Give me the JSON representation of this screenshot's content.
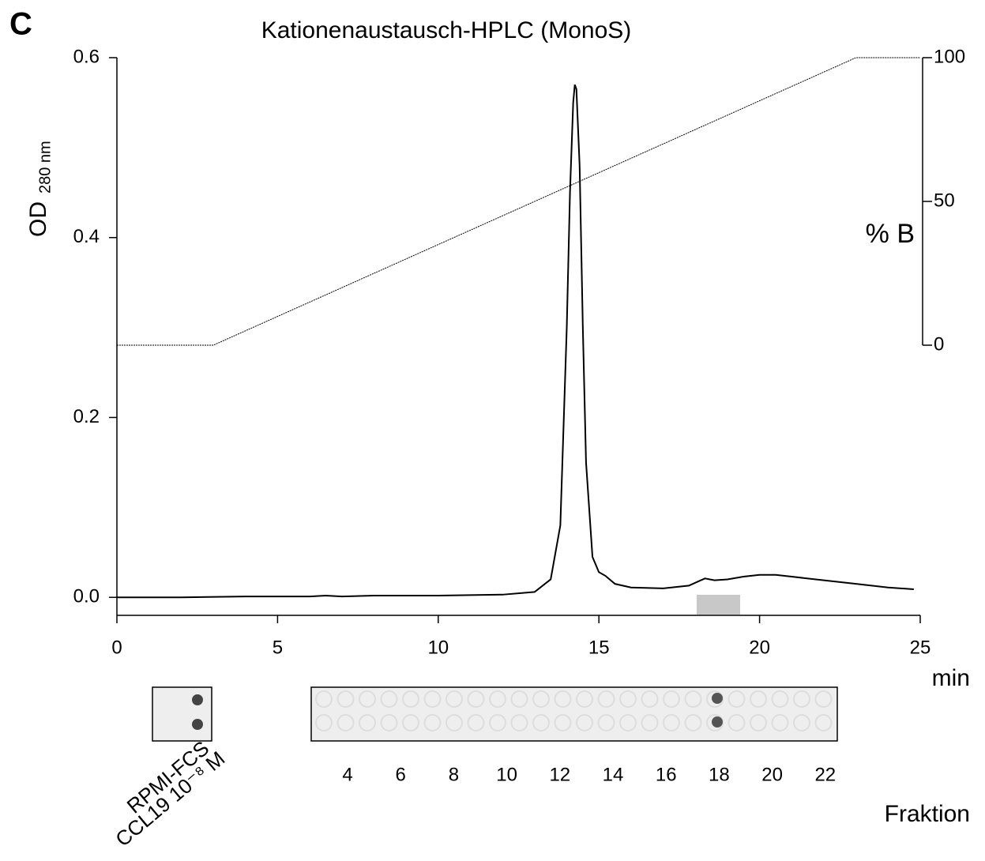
{
  "panel_label": "C",
  "chart_data": {
    "type": "line",
    "title": "Kationenaustausch-HPLC (MonoS)",
    "y_label": "OD",
    "y_label_sub": "280 nm",
    "y2_label": "% B",
    "x_label": "min",
    "xlim": [
      0,
      25
    ],
    "xticks": [
      0,
      5,
      10,
      15,
      20,
      25
    ],
    "ylim": [
      -0.02,
      0.6
    ],
    "yticks": [
      {
        "value": 0,
        "label": "0.0"
      },
      0.2,
      0.4,
      0.6
    ],
    "y2lim": [
      0,
      100
    ],
    "y2ticks": [
      0,
      50,
      100
    ],
    "series": [
      {
        "color": "#000000",
        "style": "solid",
        "x": [
          0,
          2,
          4,
          6,
          6.5,
          7,
          8,
          10,
          12,
          13,
          13.5,
          13.8,
          14.0,
          14.1,
          14.2,
          14.25,
          14.3,
          14.4,
          14.5,
          14.6,
          14.8,
          15.0,
          15.2,
          15.5,
          16,
          17,
          17.8,
          18.3,
          18.6,
          19,
          19.5,
          20,
          20.5,
          21,
          22,
          23,
          24,
          24.8
        ],
        "values": [
          0,
          0,
          0.001,
          0.001,
          0.002,
          0.001,
          0.002,
          0.002,
          0.003,
          0.006,
          0.02,
          0.08,
          0.3,
          0.45,
          0.55,
          0.57,
          0.565,
          0.48,
          0.3,
          0.15,
          0.045,
          0.028,
          0.024,
          0.015,
          0.011,
          0.01,
          0.013,
          0.021,
          0.019,
          0.02,
          0.023,
          0.025,
          0.025,
          0.023,
          0.019,
          0.015,
          0.011,
          0.009
        ]
      },
      {
        "color": "#000000",
        "style": "dotted",
        "axis": "y2",
        "x": [
          0,
          3,
          23,
          25
        ],
        "values": [
          0,
          0,
          100,
          100
        ]
      }
    ]
  },
  "blot": {
    "controls": [
      "RPMI-FCS",
      "CCL19 10⁻⁸ M"
    ],
    "fraction_labels": [
      4,
      6,
      8,
      10,
      12,
      14,
      16,
      18,
      20,
      22
    ],
    "fraction_title": "Fraktion"
  }
}
